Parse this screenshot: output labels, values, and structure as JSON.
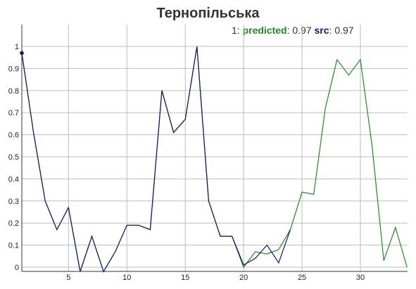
{
  "chart_data": {
    "type": "line",
    "title": "Тернопільська",
    "xlabel": "",
    "ylabel": "",
    "xlim": [
      1,
      34
    ],
    "ylim": [
      0,
      1.08
    ],
    "xticks": [
      5,
      10,
      15,
      20,
      25,
      30
    ],
    "yticks": [
      0,
      0.1,
      0.2,
      0.3,
      0.4,
      0.5,
      0.6,
      0.7,
      0.8,
      0.9,
      1
    ],
    "grid": true,
    "legend": {
      "index": "1",
      "predicted_label": "predicted",
      "predicted_value": "0.97",
      "src_label": "src",
      "src_value": "0.97"
    },
    "series": [
      {
        "name": "predicted",
        "color": "#1f8a1f",
        "x": [
          1,
          2,
          3,
          4,
          5,
          6,
          7,
          8,
          9,
          10,
          11,
          12,
          13,
          14,
          15,
          16,
          17,
          18,
          19,
          20,
          21,
          22,
          23,
          24,
          25,
          26,
          27,
          28,
          29,
          30,
          31,
          32,
          33,
          34
        ],
        "y": [
          0.97,
          0.61,
          0.3,
          0.17,
          0.27,
          -0.02,
          0.14,
          -0.02,
          0.07,
          0.19,
          0.19,
          0.17,
          0.8,
          0.61,
          0.67,
          1.0,
          0.3,
          0.14,
          0.14,
          0.0,
          0.07,
          0.06,
          0.08,
          0.17,
          0.34,
          0.33,
          0.72,
          0.94,
          0.87,
          0.94,
          0.55,
          0.03,
          0.18,
          0.0
        ]
      },
      {
        "name": "src",
        "color": "#14146e",
        "x": [
          1,
          2,
          3,
          4,
          5,
          6,
          7,
          8,
          9,
          10,
          11,
          12,
          13,
          14,
          15,
          16,
          17,
          18,
          19,
          20,
          21,
          22,
          23,
          24
        ],
        "y": [
          0.97,
          0.61,
          0.3,
          0.17,
          0.27,
          -0.02,
          0.14,
          -0.02,
          0.07,
          0.19,
          0.19,
          0.17,
          0.8,
          0.61,
          0.67,
          1.0,
          0.3,
          0.14,
          0.14,
          0.01,
          0.04,
          0.1,
          0.02,
          0.17
        ]
      }
    ]
  }
}
